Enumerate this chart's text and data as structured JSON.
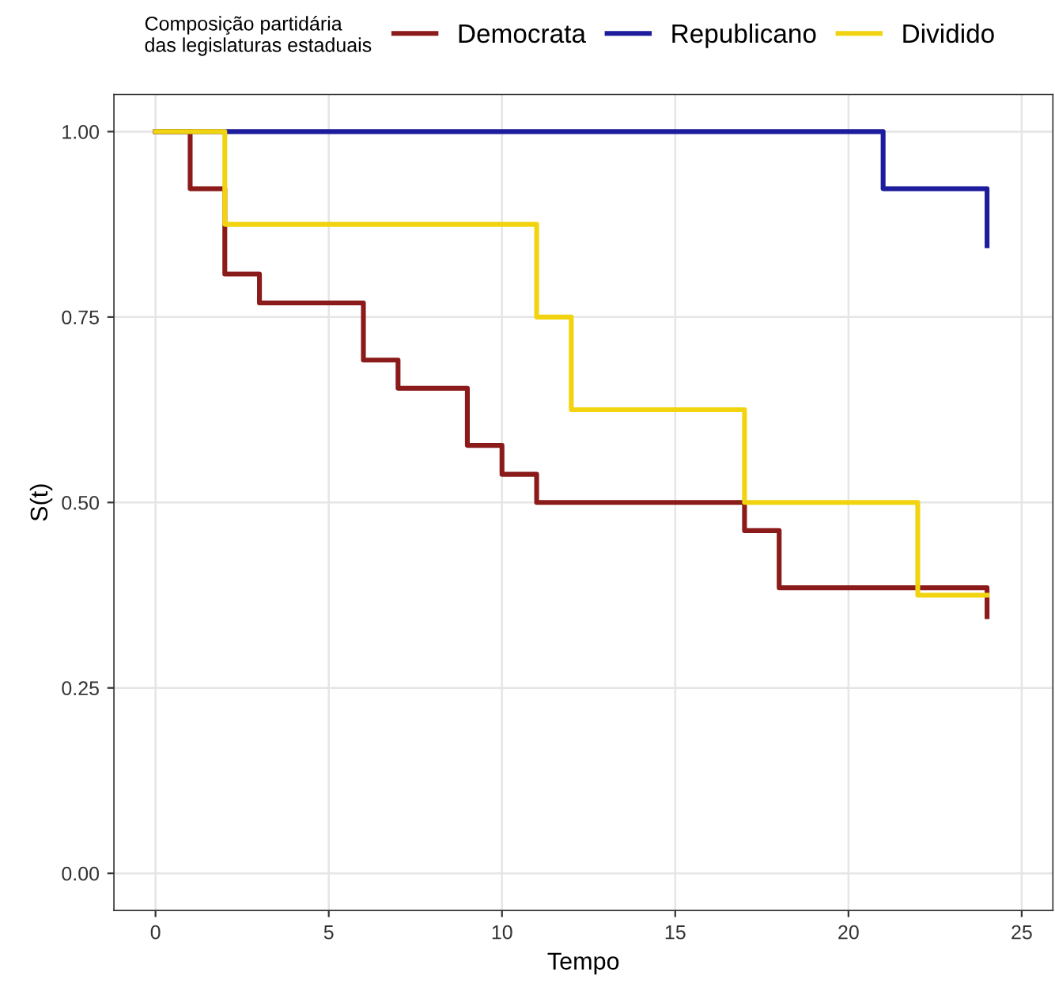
{
  "chart_data": {
    "type": "step",
    "xlabel": "Tempo",
    "ylabel": "S(t)",
    "legend_title": "Composição partidária\ndas legislaturas estaduais",
    "series": [
      {
        "name": "Democrata",
        "color": "#8b1a1a",
        "x": [
          0,
          1,
          2,
          3,
          6,
          7,
          9,
          10,
          11,
          17,
          18,
          24,
          24
        ],
        "values": [
          1.0,
          0.923,
          0.808,
          0.769,
          0.692,
          0.654,
          0.577,
          0.538,
          0.5,
          0.462,
          0.385,
          0.346,
          0.346
        ]
      },
      {
        "name": "Republicano",
        "color": "#1c1c9c",
        "x": [
          0,
          21,
          24,
          24
        ],
        "values": [
          1.0,
          0.923,
          0.846,
          0.846
        ]
      },
      {
        "name": "Dividido",
        "color": "#f2d30f",
        "x": [
          0,
          2,
          11,
          12,
          17,
          22,
          24
        ],
        "values": [
          1.0,
          0.875,
          0.75,
          0.625,
          0.5,
          0.375,
          0.375
        ]
      }
    ],
    "xlim": [
      -1.2,
      25.9
    ],
    "xticks": [
      0,
      5,
      10,
      15,
      20,
      25
    ],
    "ylim": [
      -0.05,
      1.05
    ],
    "yticks": [
      {
        "value": 0,
        "label": "0.00"
      },
      {
        "value": 0.25,
        "label": "0.25"
      },
      {
        "value": 0.5,
        "label": "0.50"
      },
      {
        "value": 0.75,
        "label": "0.75"
      },
      {
        "value": 1,
        "label": "1.00"
      }
    ],
    "grid": true,
    "legend": "top"
  }
}
